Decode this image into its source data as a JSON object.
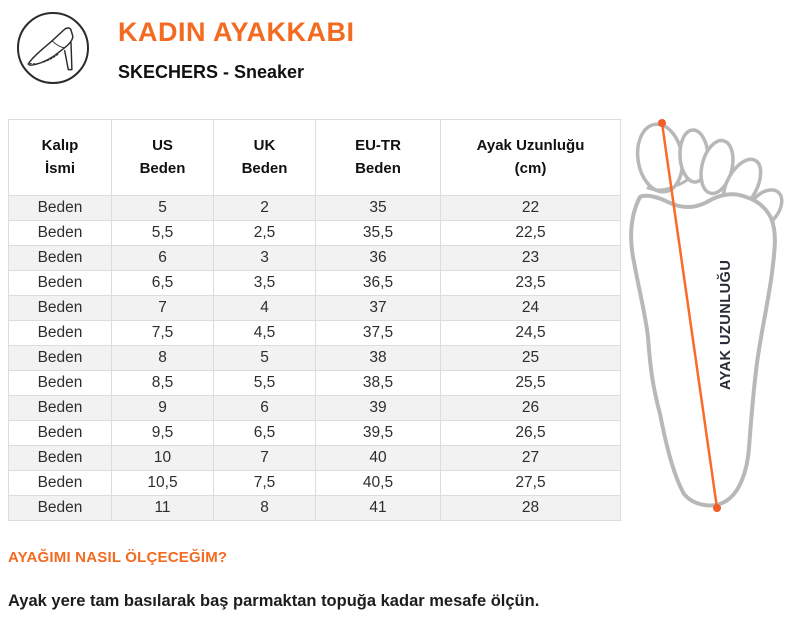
{
  "header": {
    "title": "KADIN AYAKKABI",
    "subtitle": "SKECHERS - Sneaker",
    "icon": "high-heel-shoe-icon"
  },
  "size_table": {
    "columns": [
      [
        "Kalıp",
        "İsmi"
      ],
      [
        "US",
        "Beden"
      ],
      [
        "UK",
        "Beden"
      ],
      [
        "EU-TR",
        "Beden"
      ],
      [
        "Ayak Uzunluğu",
        "(cm)"
      ]
    ],
    "rows": [
      [
        "Beden",
        "5",
        "2",
        "35",
        "22"
      ],
      [
        "Beden",
        "5,5",
        "2,5",
        "35,5",
        "22,5"
      ],
      [
        "Beden",
        "6",
        "3",
        "36",
        "23"
      ],
      [
        "Beden",
        "6,5",
        "3,5",
        "36,5",
        "23,5"
      ],
      [
        "Beden",
        "7",
        "4",
        "37",
        "24"
      ],
      [
        "Beden",
        "7,5",
        "4,5",
        "37,5",
        "24,5"
      ],
      [
        "Beden",
        "8",
        "5",
        "38",
        "25"
      ],
      [
        "Beden",
        "8,5",
        "5,5",
        "38,5",
        "25,5"
      ],
      [
        "Beden",
        "9",
        "6",
        "39",
        "26"
      ],
      [
        "Beden",
        "9,5",
        "6,5",
        "39,5",
        "26,5"
      ],
      [
        "Beden",
        "10",
        "7",
        "40",
        "27"
      ],
      [
        "Beden",
        "10,5",
        "7,5",
        "40,5",
        "27,5"
      ],
      [
        "Beden",
        "11",
        "8",
        "41",
        "28"
      ]
    ]
  },
  "diagram": {
    "label": "AYAK UZUNLUĞU"
  },
  "footer": {
    "heading": "AYAĞIMI NASIL ÖLÇECEĞİM?",
    "body": "Ayak yere tam basılarak baş parmaktan topuğa kadar mesafe ölçün."
  },
  "colors": {
    "accent_orange": "#f26b21",
    "measure_line_orange": "#fb6a28",
    "foot_outline_gray": "#b8b8b8",
    "foot_label_dark": "#272c37",
    "table_border": "#dddddd",
    "row_stripe": "#f2f2f2",
    "text_dark": "#111111",
    "text_body": "#2e2e2e"
  }
}
